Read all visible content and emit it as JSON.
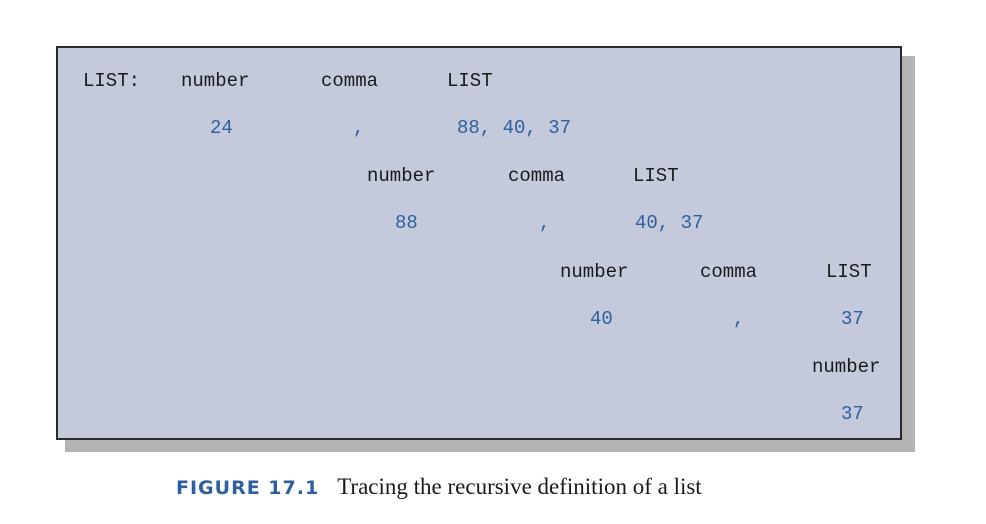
{
  "trace": {
    "level1": {
      "head": "LIST:",
      "grammar": [
        "number",
        "comma",
        "LIST"
      ],
      "values": [
        "24",
        ",",
        "88, 40, 37"
      ]
    },
    "level2": {
      "grammar": [
        "number",
        "comma",
        "LIST"
      ],
      "values": [
        "88",
        ",",
        "40, 37"
      ]
    },
    "level3": {
      "grammar": [
        "number",
        "comma",
        "LIST"
      ],
      "values": [
        "40",
        ",",
        "37"
      ]
    },
    "level4": {
      "grammar": [
        "number"
      ],
      "values": [
        "37"
      ]
    }
  },
  "caption": {
    "label": "FIGURE 17.1",
    "text": "Tracing the recursive definition of a list"
  },
  "colors": {
    "panel": "#c4c9dc",
    "value_text": "#2e5f9e",
    "caption_label": "#2e5f9e"
  }
}
